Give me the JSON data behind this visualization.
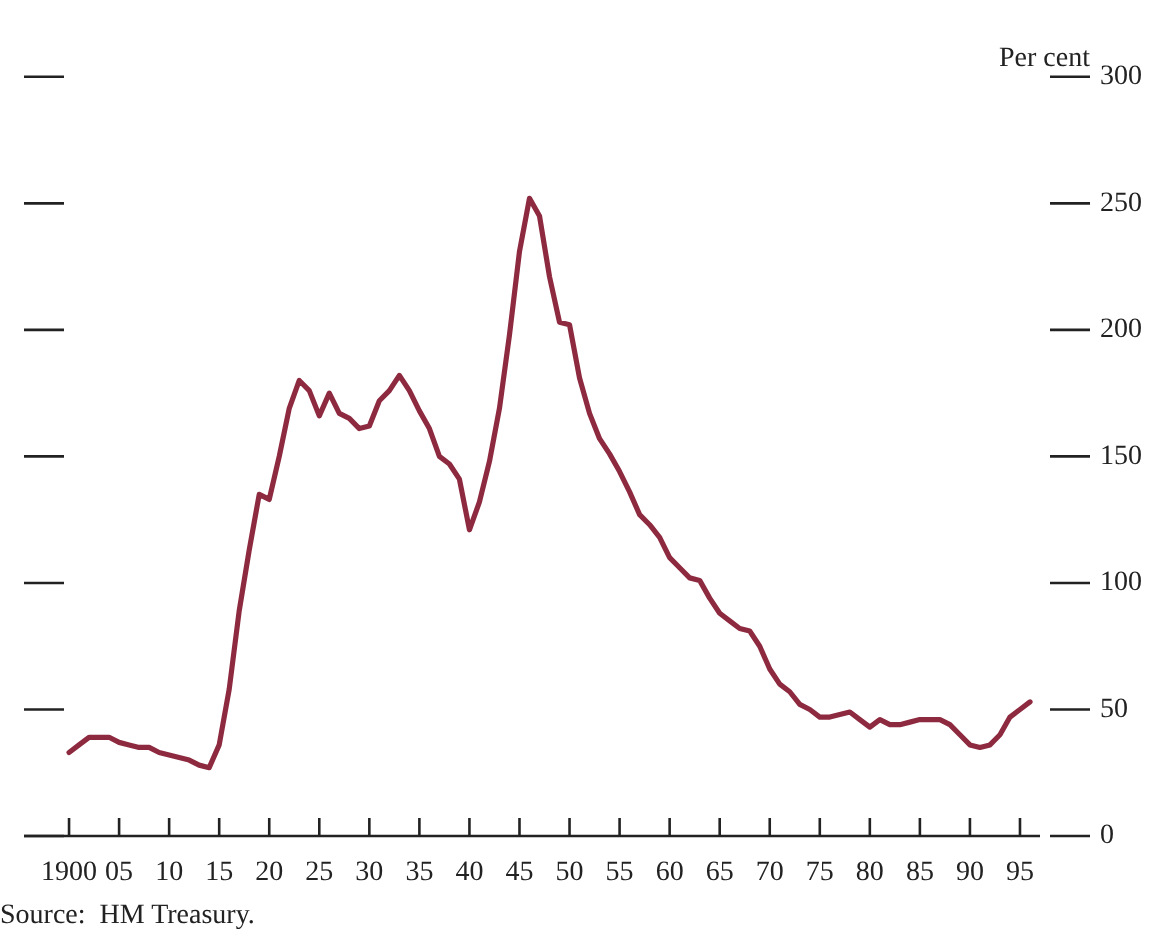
{
  "chart_data": {
    "type": "line",
    "ylabel": "Per cent",
    "annotations": [
      "Source:  HM Treasury."
    ],
    "x": [
      1900,
      1901,
      1902,
      1903,
      1904,
      1905,
      1906,
      1907,
      1908,
      1909,
      1910,
      1911,
      1912,
      1913,
      1914,
      1915,
      1916,
      1917,
      1918,
      1919,
      1920,
      1921,
      1922,
      1923,
      1924,
      1925,
      1926,
      1927,
      1928,
      1929,
      1930,
      1931,
      1932,
      1933,
      1934,
      1935,
      1936,
      1937,
      1938,
      1939,
      1940,
      1941,
      1942,
      1943,
      1944,
      1945,
      1946,
      1947,
      1948,
      1949,
      1950,
      1951,
      1952,
      1953,
      1954,
      1955,
      1956,
      1957,
      1958,
      1959,
      1960,
      1961,
      1962,
      1963,
      1964,
      1965,
      1966,
      1967,
      1968,
      1969,
      1970,
      1971,
      1972,
      1973,
      1974,
      1975,
      1976,
      1977,
      1978,
      1979,
      1980,
      1981,
      1982,
      1983,
      1984,
      1985,
      1986,
      1987,
      1988,
      1989,
      1990,
      1991,
      1992,
      1993,
      1994,
      1995,
      1996
    ],
    "series": [
      {
        "color": "#8e2a40",
        "values": [
          33,
          36,
          39,
          39,
          39,
          37,
          36,
          35,
          35,
          33,
          32,
          31,
          30,
          28,
          27,
          36,
          58,
          89,
          113,
          135,
          133,
          150,
          169,
          180,
          176,
          166,
          175,
          167,
          165,
          161,
          162,
          172,
          176,
          182,
          176,
          168,
          161,
          150,
          147,
          141,
          121,
          132,
          148,
          169,
          198,
          231,
          252,
          245,
          221,
          203,
          202,
          181,
          167,
          157,
          151,
          144,
          136,
          127,
          123,
          118,
          110,
          106,
          102,
          101,
          94,
          88,
          85,
          82,
          81,
          75,
          66,
          60,
          57,
          52,
          50,
          47,
          47,
          48,
          49,
          46,
          43,
          46,
          44,
          44,
          45,
          46,
          46,
          46,
          44,
          40,
          36,
          35,
          36,
          40,
          47,
          50,
          53
        ]
      }
    ],
    "marker": "none",
    "line_style": "solid",
    "grid": false,
    "legend": false,
    "xlim": [
      1895.5,
      1997
    ],
    "xticks": [
      {
        "value": 1900,
        "label": "1900"
      },
      {
        "value": 1905,
        "label": "05"
      },
      {
        "value": 1910,
        "label": "10"
      },
      {
        "value": 1915,
        "label": "15"
      },
      {
        "value": 1920,
        "label": "20"
      },
      {
        "value": 1925,
        "label": "25"
      },
      {
        "value": 1930,
        "label": "30"
      },
      {
        "value": 1935,
        "label": "35"
      },
      {
        "value": 1940,
        "label": "40"
      },
      {
        "value": 1945,
        "label": "45"
      },
      {
        "value": 1950,
        "label": "50"
      },
      {
        "value": 1955,
        "label": "55"
      },
      {
        "value": 1960,
        "label": "60"
      },
      {
        "value": 1965,
        "label": "65"
      },
      {
        "value": 1970,
        "label": "70"
      },
      {
        "value": 1975,
        "label": "75"
      },
      {
        "value": 1980,
        "label": "80"
      },
      {
        "value": 1985,
        "label": "85"
      },
      {
        "value": 1990,
        "label": "90"
      },
      {
        "value": 1995,
        "label": "95"
      }
    ],
    "ylim": [
      0,
      300
    ],
    "yticks": [
      0,
      50,
      100,
      150,
      200,
      250,
      300
    ]
  }
}
